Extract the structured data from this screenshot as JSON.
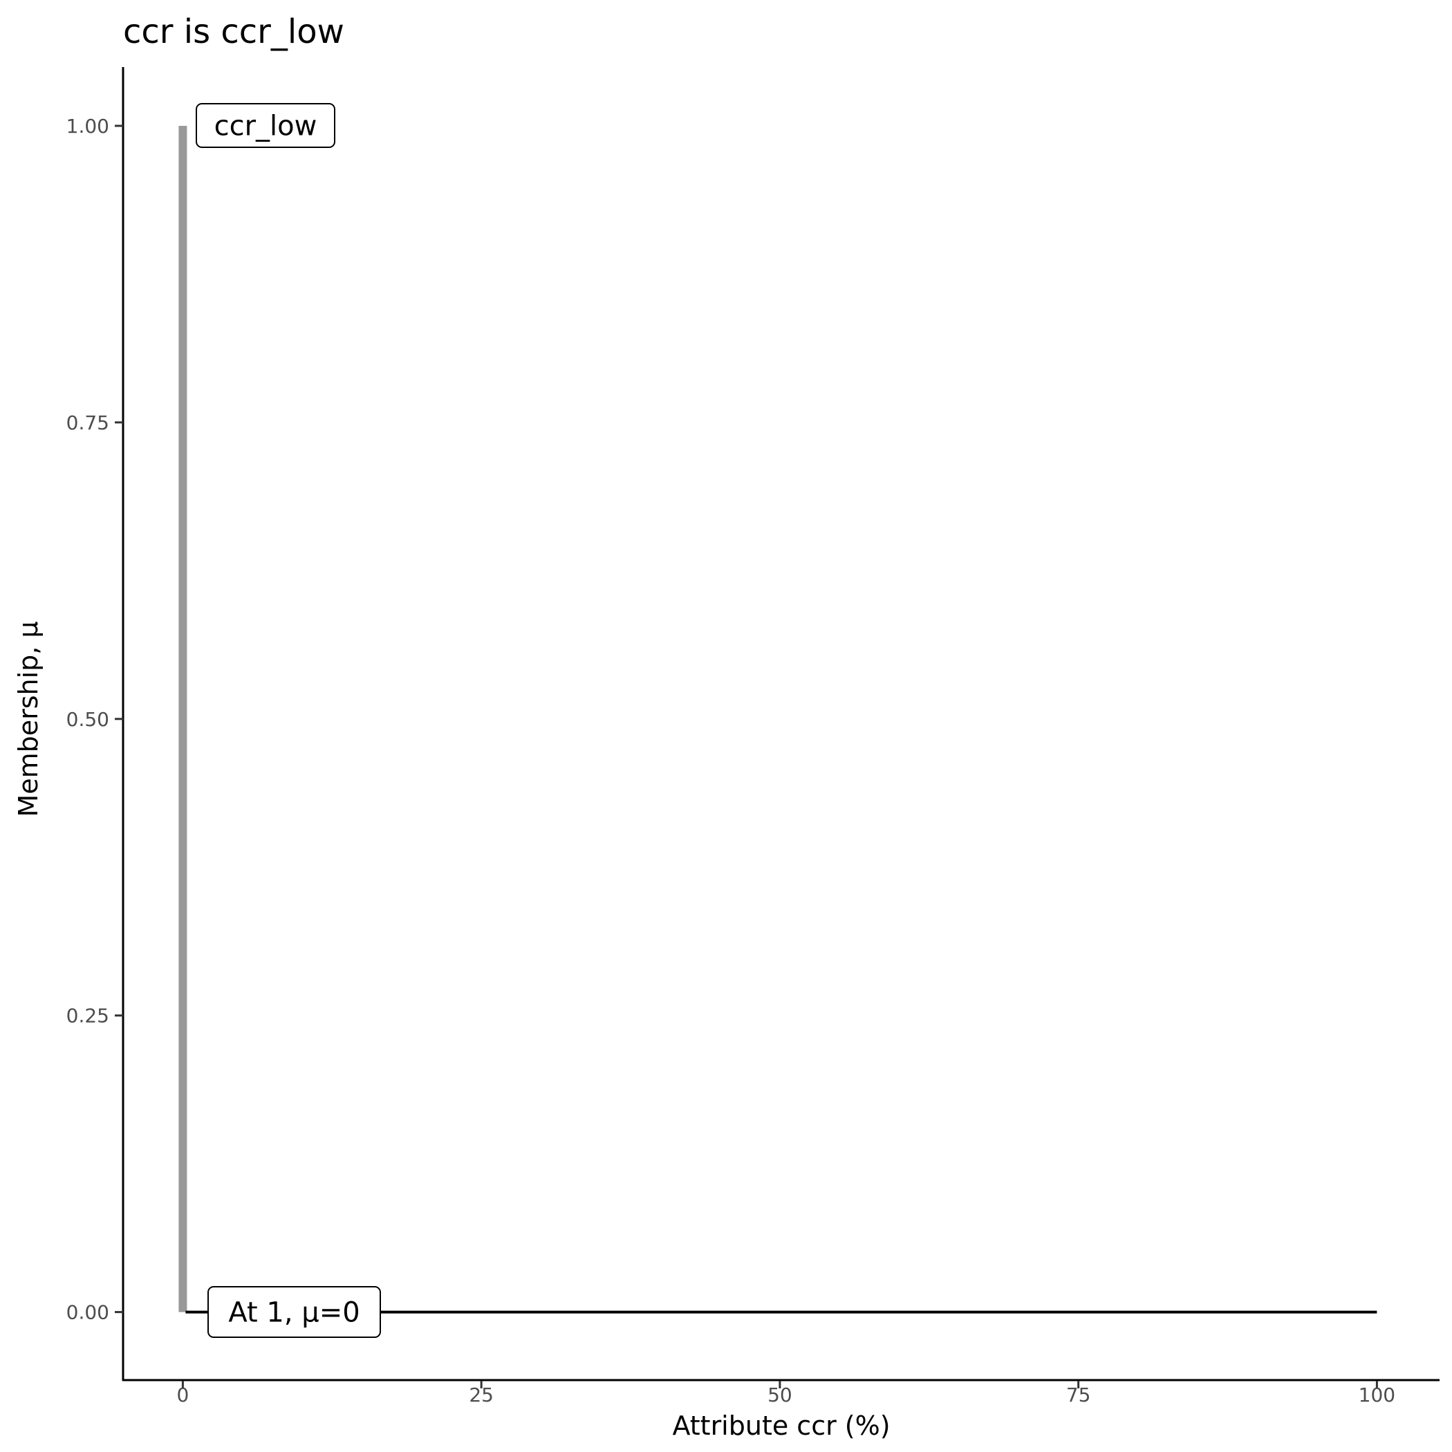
{
  "chart_data": {
    "type": "line",
    "title": "ccr is ccr_low",
    "xlabel": "Attribute ccr (%)",
    "ylabel": "Membership, μ",
    "xlim": [
      -5,
      105
    ],
    "ylim": [
      -0.05,
      1.05
    ],
    "x_ticks": [
      "0",
      "25",
      "50",
      "75",
      "100"
    ],
    "y_ticks": [
      "0.00",
      "0.25",
      "0.50",
      "0.75",
      "1.00"
    ],
    "grid": false,
    "series": [
      {
        "kind": "vertical-segment",
        "x": [
          0,
          0
        ],
        "y": [
          0,
          1
        ],
        "color": "#999999"
      },
      {
        "kind": "line",
        "x": [
          0,
          100
        ],
        "y": [
          0,
          0
        ],
        "color": "#000000"
      }
    ],
    "annotations": [
      {
        "text": "ccr_low",
        "x": 0,
        "y": 1
      },
      {
        "text": "At 1, μ=0",
        "x": 1,
        "y": 0
      }
    ]
  }
}
